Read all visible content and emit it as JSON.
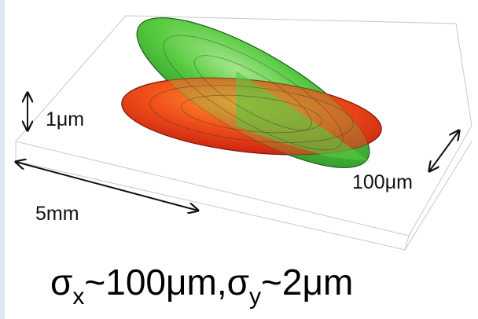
{
  "labels": {
    "height": "1μm",
    "length": "5mm",
    "width": "100μm"
  },
  "caption": {
    "parts": [
      "σ",
      "x",
      "~100μm,",
      "σ",
      "y",
      "~2μm"
    ]
  }
}
